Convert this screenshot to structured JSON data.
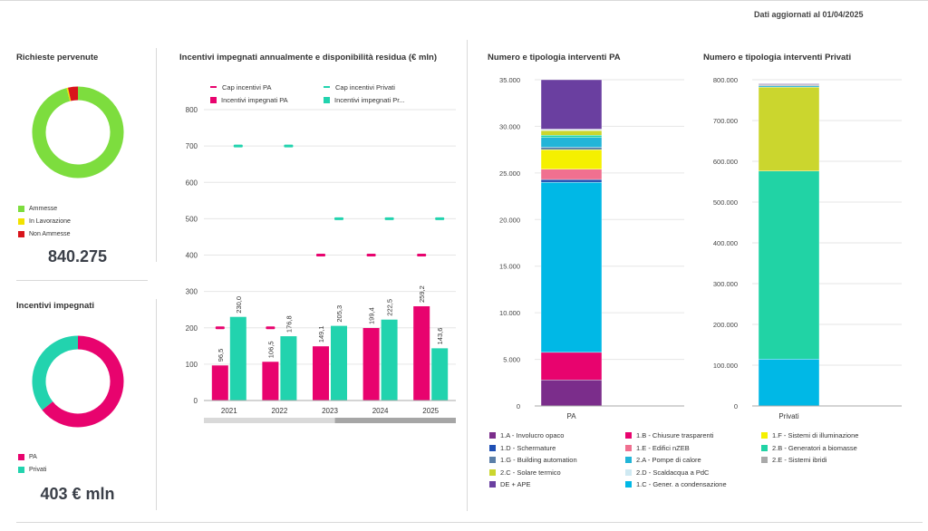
{
  "header": {
    "updated": "Dati aggiornati al 01/04/2025"
  },
  "requests": {
    "title": "Richieste pervenute",
    "total": "840.275",
    "legend": [
      {
        "label": "Ammesse",
        "color": "#7ddd3e"
      },
      {
        "label": "In Lavorazione",
        "color": "#f2e200"
      },
      {
        "label": "Non Ammesse",
        "color": "#d8141b"
      }
    ]
  },
  "incentives": {
    "title": "Incentivi impegnati",
    "total": "403 € mln",
    "legend": [
      {
        "label": "PA",
        "color": "#e8036e"
      },
      {
        "label": "Privati",
        "color": "#22d3ae"
      }
    ]
  },
  "annual_chart": {
    "title": "Incentivi impegnati annualmente e disponibilità residua (€ mln)",
    "legend": [
      {
        "label": "Cap incentivi PA",
        "kind": "line",
        "color": "#e8036e"
      },
      {
        "label": "Cap incentivi Privati",
        "kind": "line",
        "color": "#22d3ae"
      },
      {
        "label": "Incentivi impegnati PA",
        "kind": "box",
        "color": "#e8036e"
      },
      {
        "label": "Incentivi impegnati Pr...",
        "kind": "box",
        "color": "#22d3ae"
      }
    ]
  },
  "pa_chart": {
    "title": "Numero e tipologia interventi PA",
    "category": "PA"
  },
  "priv_chart": {
    "title": "Numero e tipologia interventi Privati",
    "category": "Privati"
  },
  "bottom_legend": [
    {
      "label": "1.A - Involucro opaco",
      "color": "#7b2d8b"
    },
    {
      "label": "1.D - Schermature",
      "color": "#1f4fb4"
    },
    {
      "label": "1.G - Building automation",
      "color": "#5b7fa8"
    },
    {
      "label": "2.C - Solare termico",
      "color": "#cbd62e"
    },
    {
      "label": "DE + APE",
      "color": "#6a3fa0"
    },
    {
      "label": "1.B - Chiusure trasparenti",
      "color": "#e8036e"
    },
    {
      "label": "1.E - Edifici nZEB",
      "color": "#f07090"
    },
    {
      "label": "2.A - Pompe di calore",
      "color": "#22b5d8"
    },
    {
      "label": "2.D - Scaldacqua a PdC",
      "color": "#cfe9f2"
    },
    {
      "label": "1.C - Gener. a condensazione",
      "color": "#00b8e6"
    },
    {
      "label": "1.F - Sistemi di illuminazione",
      "color": "#f5f000"
    },
    {
      "label": "2.B - Generatori a biomasse",
      "color": "#21d3a5"
    },
    {
      "label": "2.E - Sistemi ibridi",
      "color": "#a9a9a9"
    }
  ],
  "chart_data": [
    {
      "type": "pie",
      "title": "Richieste pervenute",
      "categories": [
        "Ammesse",
        "In Lavorazione",
        "Non Ammesse"
      ],
      "values": [
        96.0,
        0.5,
        3.5
      ],
      "colors": [
        "#7ddd3e",
        "#f2e200",
        "#d8141b"
      ]
    },
    {
      "type": "pie",
      "title": "Incentivi impegnati",
      "categories": [
        "PA",
        "Privati"
      ],
      "values": [
        64.3,
        35.7
      ],
      "colors": [
        "#e8036e",
        "#22d3ae"
      ]
    },
    {
      "type": "bar",
      "title": "Incentivi impegnati annualmente e disponibilità residua (€ mln)",
      "categories": [
        "2021",
        "2022",
        "2023",
        "2024",
        "2025"
      ],
      "ylim": [
        0,
        800
      ],
      "yticks": [
        0,
        100,
        200,
        300,
        400,
        500,
        600,
        700,
        800
      ],
      "series": [
        {
          "name": "Incentivi impegnati PA",
          "values": [
            96.5,
            106.5,
            149.1,
            199.4,
            259.2
          ],
          "labels": [
            "96,5",
            "106,5",
            "149,1",
            "199,4",
            "259,2"
          ],
          "color": "#e8036e"
        },
        {
          "name": "Incentivi impegnati Pr...",
          "values": [
            230.0,
            176.8,
            205.3,
            222.5,
            143.6
          ],
          "labels": [
            "230,0",
            "176,8",
            "205,3",
            "222,5",
            "143,6"
          ],
          "color": "#22d3ae"
        }
      ],
      "caps": [
        {
          "name": "Cap incentivi PA",
          "values": [
            200,
            200,
            400,
            400,
            400
          ],
          "color": "#e8036e"
        },
        {
          "name": "Cap incentivi Privati",
          "values": [
            700,
            700,
            500,
            500,
            500
          ],
          "color": "#22d3ae"
        }
      ]
    },
    {
      "type": "bar",
      "title": "Numero e tipologia interventi PA",
      "categories": [
        "PA"
      ],
      "ylim": [
        0,
        35000
      ],
      "yticks": [
        0,
        5000,
        10000,
        15000,
        20000,
        25000,
        30000,
        35000
      ],
      "ytick_labels": [
        "0",
        "5.000",
        "10.000",
        "15.000",
        "20.000",
        "25.000",
        "30.000",
        "35.000"
      ],
      "stack": [
        {
          "name": "1.A - Involucro opaco",
          "value": 2800,
          "color": "#7b2d8b"
        },
        {
          "name": "1.B - Chiusure trasparenti",
          "value": 2950,
          "color": "#e8036e"
        },
        {
          "name": "1.C - Gener. a condensazione",
          "value": 18250,
          "color": "#00b8e6"
        },
        {
          "name": "1.D - Schermature",
          "value": 300,
          "color": "#1f4fb4"
        },
        {
          "name": "1.E - Edifici nZEB",
          "value": 1100,
          "color": "#f07090"
        },
        {
          "name": "1.F - Sistemi di illuminazione",
          "value": 2100,
          "color": "#f5f000"
        },
        {
          "name": "1.G - Building automation",
          "value": 250,
          "color": "#5b7fa8"
        },
        {
          "name": "2.A - Pompe di calore",
          "value": 1050,
          "color": "#22b5d8"
        },
        {
          "name": "2.B - Generatori a biomasse",
          "value": 250,
          "color": "#21d3a5"
        },
        {
          "name": "2.C - Solare termico",
          "value": 500,
          "color": "#cbd62e"
        },
        {
          "name": "2.D - Scaldacqua a PdC",
          "value": 100,
          "color": "#cfe9f2"
        },
        {
          "name": "2.E - Sistemi ibridi",
          "value": 50,
          "color": "#a9a9a9"
        },
        {
          "name": "DE + APE",
          "value": 5300,
          "color": "#6a3fa0"
        }
      ]
    },
    {
      "type": "bar",
      "title": "Numero e tipologia interventi Privati",
      "categories": [
        "Privati"
      ],
      "ylim": [
        0,
        800000
      ],
      "yticks": [
        0,
        100000,
        200000,
        300000,
        400000,
        500000,
        600000,
        700000,
        800000
      ],
      "ytick_labels": [
        "0",
        "100.000",
        "200.000",
        "300.000",
        "400.000",
        "500.000",
        "600.000",
        "700.000",
        "800.000"
      ],
      "stack": [
        {
          "name": "1.C - Gener. a condensazione",
          "value": 115000,
          "color": "#00b8e6"
        },
        {
          "name": "2.B - Generatori a biomasse",
          "value": 461000,
          "color": "#21d3a5"
        },
        {
          "name": "2.C - Solare termico",
          "value": 206000,
          "color": "#cbd62e"
        },
        {
          "name": "2.A - Pompe di calore",
          "value": 3000,
          "color": "#22b5d8"
        },
        {
          "name": "2.E - Sistemi ibridi",
          "value": 3000,
          "color": "#a9a9a9"
        },
        {
          "name": "DE + APE",
          "value": 2000,
          "color": "#6a3fa0"
        }
      ]
    }
  ]
}
